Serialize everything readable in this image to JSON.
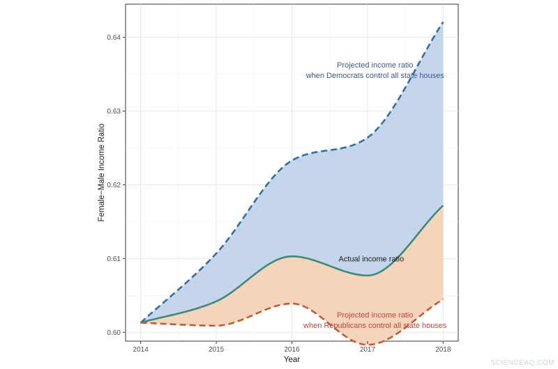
{
  "chart_data": {
    "type": "line",
    "xlabel": "Year",
    "ylabel": "Female−Male Income Ratio",
    "xlim": [
      2013.8,
      2018.2
    ],
    "ylim": [
      0.5988,
      0.6445
    ],
    "x_ticks": [
      "2014",
      "2015",
      "2016",
      "2017",
      "2018"
    ],
    "y_ticks": [
      "0.60",
      "0.61",
      "0.62",
      "0.63",
      "0.64"
    ],
    "grid": true,
    "x": [
      2014,
      2015,
      2016,
      2017,
      2018
    ],
    "series": [
      {
        "name": "Projected income ratio when Democrats control all state houses",
        "values": [
          0.6013,
          0.6107,
          0.6233,
          0.6264,
          0.6421
        ],
        "color": "#2e6fa8",
        "style": "dashed"
      },
      {
        "name": "Actual income ratio",
        "values": [
          0.6013,
          0.6042,
          0.6103,
          0.6077,
          0.6172
        ],
        "color": "#3d8a78",
        "style": "solid"
      },
      {
        "name": "Projected income ratio when Republicans control all state houses",
        "values": [
          0.6013,
          0.6009,
          0.6039,
          0.5983,
          0.6045
        ],
        "color": "#c25b34",
        "style": "dashed"
      }
    ],
    "fills": [
      {
        "between": [
          "Actual income ratio",
          "Projected income ratio when Democrats control all state houses"
        ],
        "color": "#c5d5ea"
      },
      {
        "between": [
          "Projected income ratio when Republicans control all state houses",
          "Actual income ratio"
        ],
        "color": "#f5d4bc"
      }
    ],
    "annotations": [
      {
        "lines": [
          "Projected income ratio",
          "when Democrats control all state houses"
        ],
        "x": 2017.1,
        "y": 0.6356,
        "color": "#3d5a93"
      },
      {
        "lines": [
          "Actual income ratio"
        ],
        "x": 2017.05,
        "y": 0.61,
        "color": "#1a1a1a"
      },
      {
        "lines": [
          "Projected income ratio",
          "when Republicans control all state houses"
        ],
        "x": 2017.1,
        "y": 0.6017,
        "color": "#c4453d"
      }
    ]
  },
  "watermark": "SCIENCEAQ.COM"
}
